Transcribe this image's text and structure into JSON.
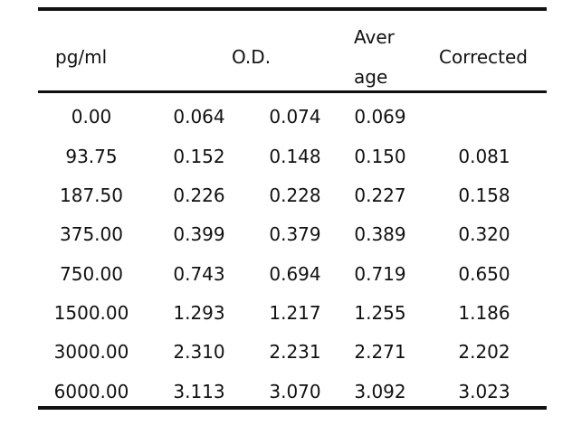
{
  "header": {
    "col_pg": "pg/ml",
    "col_od": "O.D.",
    "col_avg_line1": "Aver",
    "col_avg_line2": "age",
    "col_corrected": "Corrected"
  },
  "rows": [
    [
      "0.00",
      "0.064",
      "0.074",
      "0.069",
      ""
    ],
    [
      "93.75",
      "0.152",
      "0.148",
      "0.150",
      "0.081"
    ],
    [
      "187.50",
      "0.226",
      "0.228",
      "0.227",
      "0.158"
    ],
    [
      "375.00",
      "0.399",
      "0.379",
      "0.389",
      "0.320"
    ],
    [
      "750.00",
      "0.743",
      "0.694",
      "0.719",
      "0.650"
    ],
    [
      "1500.00",
      "1.293",
      "1.217",
      "1.255",
      "1.186"
    ],
    [
      "3000.00",
      "2.310",
      "2.231",
      "2.271",
      "2.202"
    ],
    [
      "6000.00",
      "3.113",
      "3.070",
      "3.092",
      "3.023"
    ]
  ]
}
